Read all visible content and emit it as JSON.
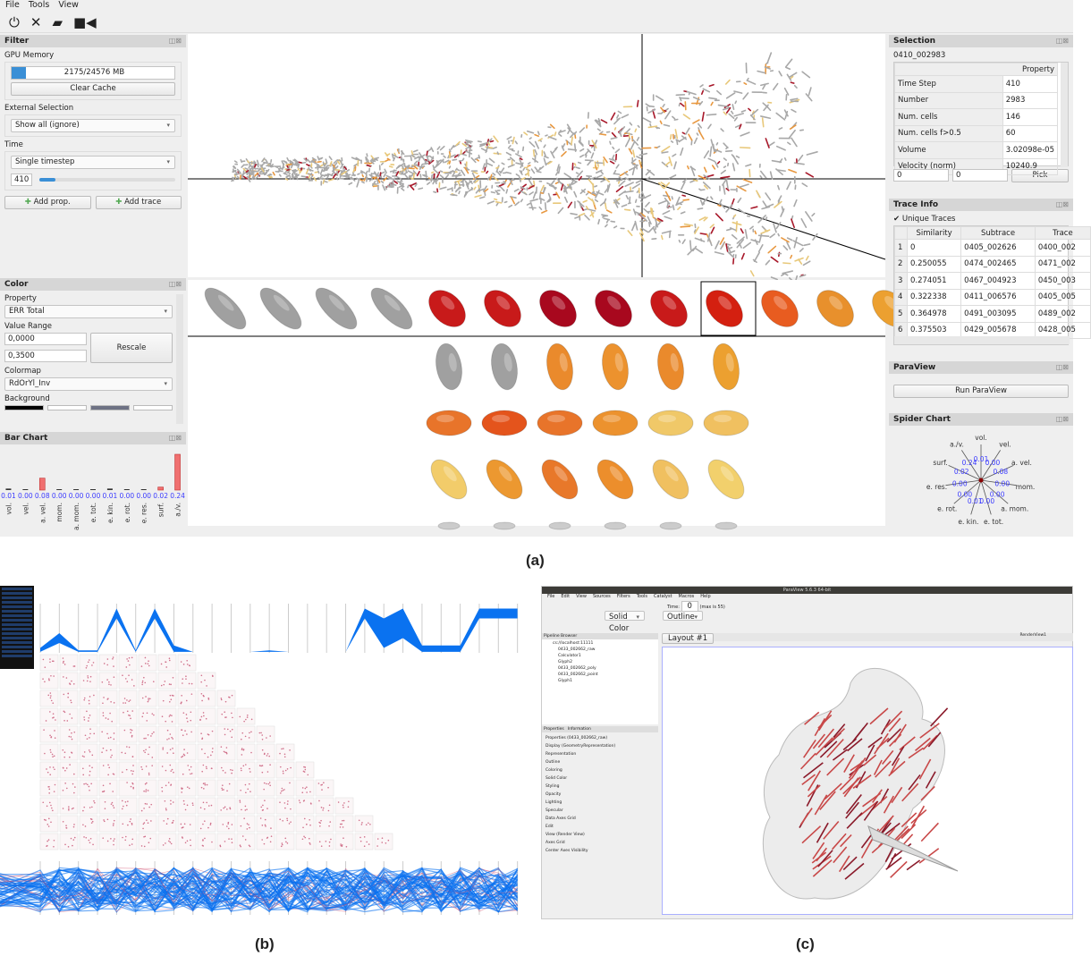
{
  "menu": [
    "File",
    "Tools",
    "View"
  ],
  "toolbar_icons": [
    "power-icon",
    "close-icon",
    "folder-open-icon",
    "video-camera-icon"
  ],
  "filter": {
    "title": "Filter",
    "gpu_memory_label": "GPU Memory",
    "gpu_memory_value": "2175/24576 MB",
    "gpu_memory_fraction": 0.0885,
    "clear_cache": "Clear Cache",
    "external_selection_label": "External Selection",
    "external_selection_value": "Show all (ignore)",
    "time_label": "Time",
    "time_mode": "Single timestep",
    "timestep": "410",
    "time_slider_fraction": 0.12,
    "add_prop": "Add prop.",
    "add_trace": "Add trace"
  },
  "color": {
    "title": "Color",
    "property_label": "Property",
    "property_value": "ERR Total",
    "value_range_label": "Value Range",
    "min": "0,0000",
    "max": "0,3500",
    "rescale": "Rescale",
    "colormap_label": "Colormap",
    "colormap_value": "RdOrYl_Inv",
    "background_label": "Background",
    "background_swatches": [
      "#000000",
      "#ffffff",
      "#6e7284",
      "#ffffff"
    ]
  },
  "bar_chart": {
    "title": "Bar Chart"
  },
  "chart_data": {
    "type": "bar",
    "categories": [
      "vol.",
      "vel.",
      "a. vel.",
      "mom.",
      "a. mom.",
      "e. tot.",
      "e. kin.",
      "e. rot.",
      "e. res.",
      "surf.",
      "a./v."
    ],
    "values": [
      0.01,
      0.0,
      0.08,
      0.0,
      0.0,
      0.0,
      0.01,
      0.0,
      0.0,
      0.02,
      0.24
    ],
    "value_labels": [
      "0.01",
      "0.00",
      "0.08",
      "0.00",
      "0.00",
      "0.00",
      "0.01",
      "0.00",
      "0.00",
      "0.02",
      "0.24"
    ],
    "bar_color": "#f07070",
    "label_color": "#3b3bff"
  },
  "selection": {
    "title": "Selection",
    "id": "0410_002983",
    "column": "Property",
    "rows": [
      [
        "Time Step",
        "410"
      ],
      [
        "Number",
        "2983"
      ],
      [
        "Num. cells",
        "146"
      ],
      [
        "Num. cells f>0.5",
        "60"
      ],
      [
        "Volume",
        "3.02098e-05"
      ],
      [
        "Velocity (norm)",
        "10240.9"
      ]
    ],
    "pick_x": "0",
    "pick_y": "0",
    "pick": "Pick"
  },
  "trace_info": {
    "title": "Trace Info",
    "unique_traces": "Unique Traces",
    "columns": [
      "",
      "Similarity",
      "Subtrace",
      "Trace"
    ],
    "rows": [
      [
        "1",
        "0",
        "0405_002626",
        "0400_002"
      ],
      [
        "2",
        "0.250055",
        "0474_002465",
        "0471_002"
      ],
      [
        "3",
        "0.274051",
        "0467_004923",
        "0450_003"
      ],
      [
        "4",
        "0.322338",
        "0411_006576",
        "0405_005"
      ],
      [
        "5",
        "0.364978",
        "0491_003095",
        "0489_002"
      ],
      [
        "6",
        "0.375503",
        "0429_005678",
        "0428_005"
      ]
    ]
  },
  "paraview": {
    "title": "ParaView",
    "run": "Run ParaView"
  },
  "spider": {
    "title": "Spider Chart"
  },
  "glyphs": {
    "strip": [
      "#a0a0a0",
      "#a0a0a0",
      "#a0a0a0",
      "#a0a0a0",
      "#c81a1a",
      "#c81a1a",
      "#a8081e",
      "#a8081e",
      "#c81a1a",
      "#d42010",
      "#e85c20",
      "#e8902c",
      "#eca030"
    ],
    "grid": [
      [
        "#a0a0a0",
        "#a0a0a0",
        "#ea8a2c",
        "#ec922e",
        "#ea8a2c",
        "#eca030"
      ],
      [
        "#e8742a",
        "#e4541c",
        "#e8742a",
        "#ec922e",
        "#f0c868",
        "#f0c060"
      ],
      [
        "#f2cc6a",
        "#ec9830",
        "#e8782a",
        "#ec8e2c",
        "#f0c060",
        "#f2d06c"
      ]
    ]
  },
  "captions": [
    "(a)",
    "(b)",
    "(c)"
  ],
  "paraview_c": {
    "title": "ParaView 5.6.3 64-bit",
    "menu": [
      "File",
      "Edit",
      "View",
      "Sources",
      "Filters",
      "Tools",
      "Catalyst",
      "Macros",
      "Help"
    ],
    "time_label": "Time:",
    "time_value": "0",
    "max_label": "(max is 55)",
    "solid_color": "Solid Color",
    "outline": "Outline",
    "pipeline_title": "Pipeline Browser",
    "pipeline": [
      "cs://localhost:11111",
      "0433_002662_raw",
      "Calculator1",
      "Glyph2",
      "0433_002662_poly",
      "0433_002662_point",
      "Glyph1"
    ],
    "layout_tab": "Layout #1",
    "render_view": "RenderView1",
    "tabs": [
      "Properties",
      "Information"
    ],
    "props": [
      "Properties (0433_002662_raw)",
      "Display (GeometryRepresentation)",
      "Representation",
      "Outline",
      "Coloring",
      "Solid Color",
      "Styling",
      "Opacity",
      "Lighting",
      "Specular",
      "Data Axes Grid",
      "Edit",
      "View (Render View)",
      "Axes Grid",
      "Center Axes Visibility"
    ]
  }
}
